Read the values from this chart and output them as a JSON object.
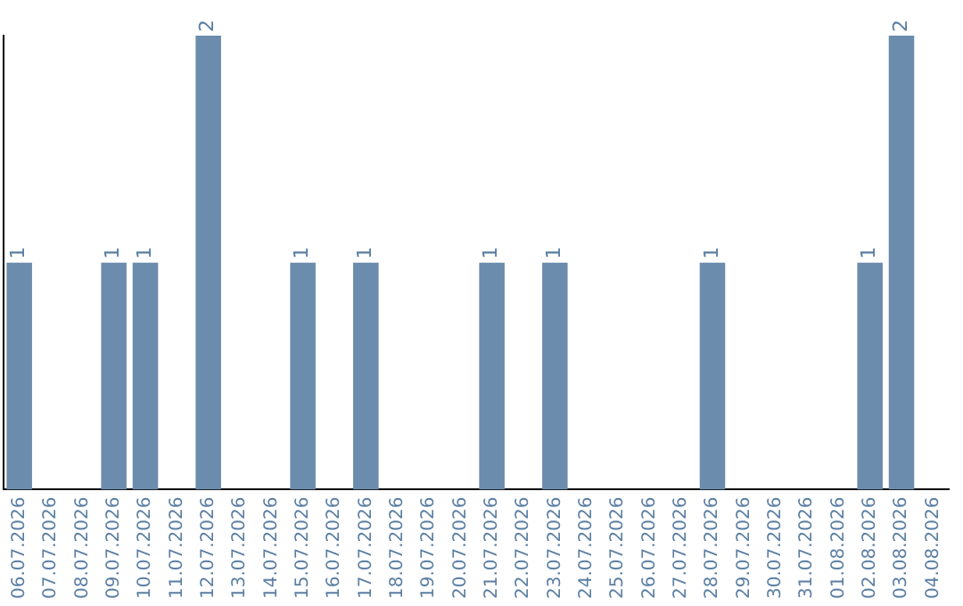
{
  "chart_data": {
    "type": "bar",
    "categories": [
      "06.07.2026",
      "07.07.2026",
      "08.07.2026",
      "09.07.2026",
      "10.07.2026",
      "11.07.2026",
      "12.07.2026",
      "13.07.2026",
      "14.07.2026",
      "15.07.2026",
      "16.07.2026",
      "17.07.2026",
      "18.07.2026",
      "19.07.2026",
      "20.07.2026",
      "21.07.2026",
      "22.07.2026",
      "23.07.2026",
      "24.07.2026",
      "25.07.2026",
      "26.07.2026",
      "27.07.2026",
      "28.07.2026",
      "29.07.2026",
      "30.07.2026",
      "31.07.2026",
      "01.08.2026",
      "02.08.2026",
      "03.08.2026",
      "04.08.2026"
    ],
    "values": [
      1,
      0,
      0,
      1,
      1,
      0,
      2,
      0,
      0,
      1,
      0,
      1,
      0,
      0,
      0,
      1,
      0,
      1,
      0,
      0,
      0,
      0,
      1,
      0,
      0,
      0,
      0,
      1,
      2,
      0
    ],
    "value_labels": [
      "1",
      null,
      null,
      "1",
      "1",
      null,
      "2",
      null,
      null,
      "1",
      null,
      "1",
      null,
      null,
      null,
      "1",
      null,
      "1",
      null,
      null,
      null,
      null,
      "1",
      null,
      null,
      null,
      null,
      "1",
      "2",
      null
    ],
    "color": "#6b8cac",
    "grid": false,
    "legend": false,
    "tick_labels": "x"
  }
}
